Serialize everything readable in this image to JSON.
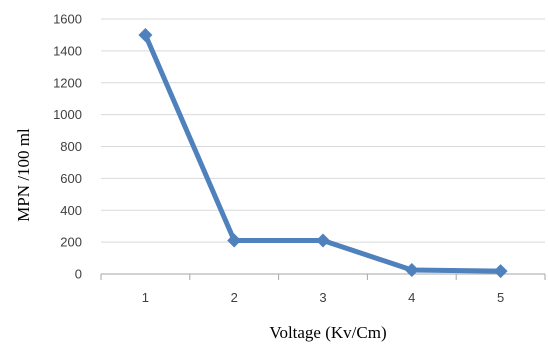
{
  "chart_data": {
    "type": "line",
    "title": "",
    "xlabel": "Voltage (Kv/Cm)",
    "ylabel": "MPN /100 ml",
    "categories": [
      "1",
      "2",
      "3",
      "4",
      "5"
    ],
    "series": [
      {
        "values": [
          1500,
          210,
          210,
          25,
          18
        ]
      }
    ],
    "ylim": [
      0,
      1600
    ],
    "yticks": [
      "0",
      "200",
      "400",
      "600",
      "800",
      "1000",
      "1200",
      "1400",
      "1600"
    ],
    "grid": true,
    "legend": "none",
    "colors": {
      "series": "#4F81BD",
      "grid": "#D9D9D9",
      "axis": "#A6A6A6"
    },
    "marker": "diamond"
  }
}
